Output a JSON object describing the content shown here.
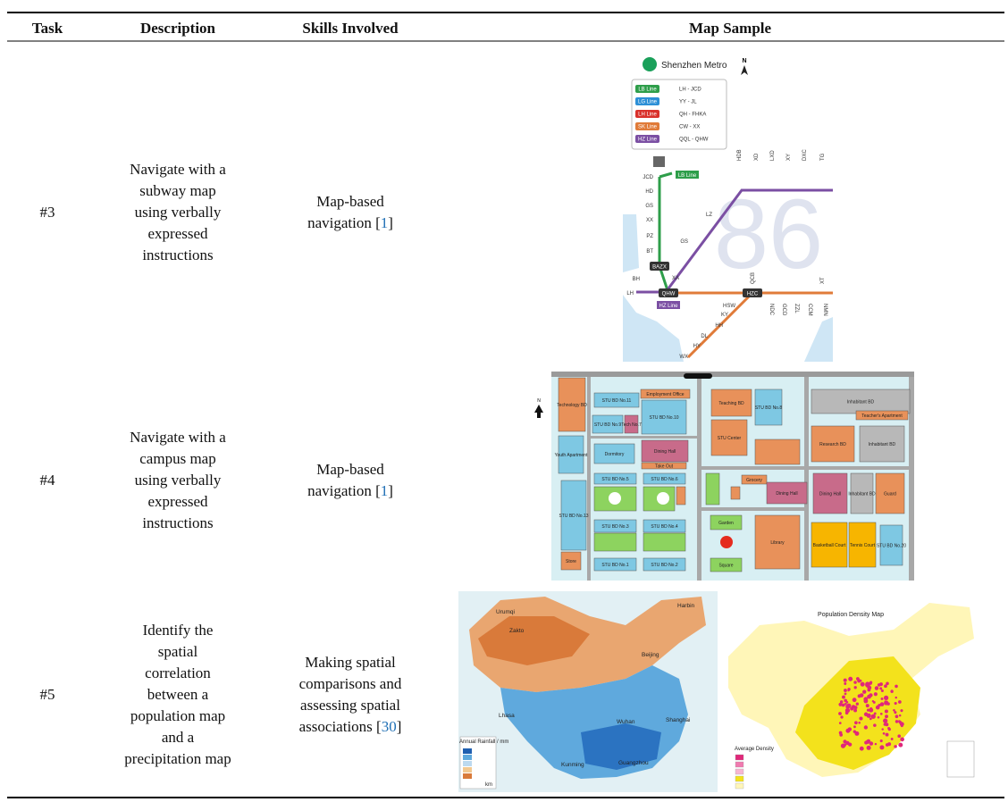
{
  "header": {
    "task": "Task",
    "description": "Description",
    "skills": "Skills Involved",
    "map": "Map Sample"
  },
  "rows": [
    {
      "task": "#3",
      "description": [
        "Navigate with a",
        "subway map",
        "using verbally",
        "expressed",
        "instructions"
      ],
      "skills": {
        "lines": [
          "Map-based",
          "navigation ["
        ],
        "ref": "1",
        "close": "]"
      }
    },
    {
      "task": "#4",
      "description": [
        "Navigate with a",
        "campus map",
        "using verbally",
        "expressed",
        "instructions"
      ],
      "skills": {
        "lines": [
          "Map-based",
          "navigation ["
        ],
        "ref": "1",
        "close": "]"
      }
    },
    {
      "task": "#5",
      "description": [
        "Identify the",
        "spatial",
        "correlation",
        "between a",
        "population map",
        "and a",
        "precipitation map"
      ],
      "skills": {
        "lines": [
          "Making spatial",
          "comparisons and",
          "assessing spatial",
          "associations ["
        ],
        "ref": "30",
        "close": "]"
      }
    }
  ],
  "subway": {
    "title": "Shenzhen Metro",
    "north": "N",
    "watermark": "86",
    "legend": [
      {
        "line": "LB Line",
        "route": "LH - JCD"
      },
      {
        "line": "LG Line",
        "route": "YY - JL"
      },
      {
        "line": "LH Line",
        "route": "QH - FHKA"
      },
      {
        "line": "SK Line",
        "route": "CW - XX"
      },
      {
        "line": "HZ Line",
        "route": "QQL - QHW"
      }
    ],
    "line_tags": [
      "LB Line",
      "HZ Line"
    ],
    "stations": [
      "JCD",
      "HD",
      "GS",
      "XX",
      "PZ",
      "BT",
      "BH",
      "LH",
      "XA",
      "LZ",
      "GS",
      "HSW",
      "KY",
      "HH",
      "DL",
      "HY",
      "WX",
      "HDB",
      "XD",
      "LXD",
      "XY",
      "DXC",
      "TG",
      "NDC",
      "GCD",
      "ZZL",
      "CCM",
      "NMN",
      "QCB",
      "XT"
    ],
    "interchanges": [
      "BAZX",
      "QHW",
      "HZC"
    ]
  },
  "campus": {
    "north": "N",
    "labels": [
      "Technology BD",
      "STU BD No.11",
      "Employment Office",
      "STU BD No.10",
      "STU BD No.9",
      "Tech No.7",
      "Youth Apartment",
      "Dormitory",
      "Dining Hall",
      "Take Out",
      "STU BD No.5",
      "STU BD No.6",
      "STU BD No.13",
      "Store",
      "STU BD No.3",
      "STU BD No.4",
      "STU BD No.1",
      "STU BD No.2",
      "Teaching BD",
      "STU BD No.8",
      "STU Center",
      "Grocery",
      "Dining Hall",
      "Garden",
      "Square",
      "Library",
      "Inhabitant BD",
      "Teacher's Apartment",
      "Research BD",
      "Inhabitant BD",
      "Dining Hall",
      "Inhabitant BD",
      "Guard",
      "Basketball Court",
      "Tennis Court",
      "STU BD No.20"
    ]
  },
  "rainfall": {
    "legend": "Annual Rainfall / mm",
    "scale": "km",
    "cities": [
      "Urumqi",
      "Harbin",
      "Zakto",
      "Beijing",
      "Lhasa",
      "Wuhan",
      "Shanghai",
      "Kunming",
      "Guangzhou"
    ]
  },
  "density": {
    "title": "Population Density Map",
    "legend": "Average Density"
  }
}
